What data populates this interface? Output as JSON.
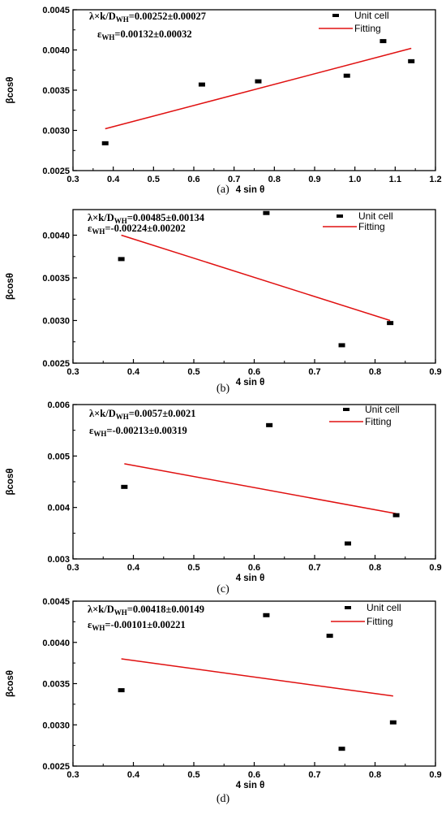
{
  "chart_data": [
    {
      "type": "scatter",
      "caption": "(a)",
      "xlabel": "4 sin θ",
      "ylabel": "βcosθ",
      "xlim": [
        0.3,
        1.2
      ],
      "ylim": [
        0.0025,
        0.0045
      ],
      "xticks": [
        "0.3",
        "0.4",
        "0.5",
        "0.6",
        "0.7",
        "0.8",
        "0.9",
        "1.0",
        "1.1",
        "1.2"
      ],
      "yticks": [
        "0.0025",
        "0.0030",
        "0.0035",
        "0.0040",
        "0.0045"
      ],
      "annotation": {
        "line1_prefix": "λ×k/D",
        "line1_sub": "WH",
        "line1_value": "=0.00252±0.00027",
        "line2_prefix": "ε",
        "line2_sub": "WH",
        "line2_value": "=0.00132±0.00032"
      },
      "legend": {
        "points_label": "Unit cell",
        "line_label": "Fitting",
        "position": "top-right"
      },
      "series": [
        {
          "name": "Unit cell",
          "type": "scatter",
          "x": [
            0.38,
            0.62,
            0.76,
            0.98,
            1.07,
            1.14
          ],
          "y": [
            0.00284,
            0.00357,
            0.00361,
            0.00368,
            0.00411,
            0.00386
          ]
        },
        {
          "name": "Fitting",
          "type": "line",
          "x": [
            0.38,
            1.14
          ],
          "y": [
            0.00302,
            0.00402
          ]
        }
      ]
    },
    {
      "type": "scatter",
      "caption": "(b)",
      "xlabel": "4 sin θ",
      "ylabel": "βcosθ",
      "xlim": [
        0.3,
        0.9
      ],
      "ylim": [
        0.0025,
        0.0043
      ],
      "xticks": [
        "0.3",
        "0.4",
        "0.5",
        "0.6",
        "0.7",
        "0.8",
        "0.9"
      ],
      "yticks": [
        "0.0025",
        "0.0030",
        "0.0035",
        "0.0040"
      ],
      "annotation": {
        "line1_prefix": "λ×k/D",
        "line1_sub": "WH",
        "line1_value": "=0.00485±0.00134",
        "line2_prefix": "ε",
        "line2_sub": "WH",
        "line2_value": "=-0.00224±0.00202"
      },
      "legend": {
        "points_label": "Unit cell",
        "line_label": "Fitting",
        "position": "top-right"
      },
      "series": [
        {
          "name": "Unit cell",
          "type": "scatter",
          "x": [
            0.38,
            0.62,
            0.745,
            0.825
          ],
          "y": [
            0.00372,
            0.00426,
            0.00271,
            0.00297
          ]
        },
        {
          "name": "Fitting",
          "type": "line",
          "x": [
            0.38,
            0.825
          ],
          "y": [
            0.004,
            0.003
          ]
        }
      ]
    },
    {
      "type": "scatter",
      "caption": "(c)",
      "xlabel": "4 sin θ",
      "ylabel": "βcosθ",
      "xlim": [
        0.3,
        0.9
      ],
      "ylim": [
        0.003,
        0.006
      ],
      "xticks": [
        "0.3",
        "0.4",
        "0.5",
        "0.6",
        "0.7",
        "0.8",
        "0.9"
      ],
      "yticks": [
        "0.003",
        "0.004",
        "0.005",
        "0.006"
      ],
      "annotation": {
        "line1_prefix": "λ×k/D",
        "line1_sub": "WH",
        "line1_value": "=0.0057±0.0021",
        "line2_prefix": "ε",
        "line2_sub": "WH",
        "line2_value": "=-0.00213±0.00319"
      },
      "legend": {
        "points_label": "Unit cell",
        "line_label": "Fitting",
        "position": "top-right"
      },
      "series": [
        {
          "name": "Unit cell",
          "type": "scatter",
          "x": [
            0.385,
            0.625,
            0.755,
            0.835
          ],
          "y": [
            0.0044,
            0.0056,
            0.0033,
            0.00385
          ]
        },
        {
          "name": "Fitting",
          "type": "line",
          "x": [
            0.385,
            0.835
          ],
          "y": [
            0.00485,
            0.00388
          ]
        }
      ]
    },
    {
      "type": "scatter",
      "caption": "(d)",
      "xlabel": "4 sin θ",
      "ylabel": "βcosθ",
      "xlim": [
        0.3,
        0.9
      ],
      "ylim": [
        0.0025,
        0.0045
      ],
      "xticks": [
        "0.3",
        "0.4",
        "0.5",
        "0.6",
        "0.7",
        "0.8",
        "0.9"
      ],
      "yticks": [
        "0.0025",
        "0.0030",
        "0.0035",
        "0.0040",
        "0.0045"
      ],
      "annotation": {
        "line1_prefix": "λ×k/D",
        "line1_sub": "WH",
        "line1_value": "=0.00418±0.00149",
        "line2_prefix": "ε",
        "line2_sub": "WH",
        "line2_value": "=-0.00101±0.00221"
      },
      "legend": {
        "points_label": "Unit cell",
        "line_label": "Fitting",
        "position": "top-right"
      },
      "series": [
        {
          "name": "Unit cell",
          "type": "scatter",
          "x": [
            0.38,
            0.62,
            0.725,
            0.745,
            0.83
          ],
          "y": [
            0.00342,
            0.00433,
            0.00408,
            0.00271,
            0.00303
          ]
        },
        {
          "name": "Fitting",
          "type": "line",
          "x": [
            0.38,
            0.83
          ],
          "y": [
            0.0038,
            0.00335
          ]
        }
      ]
    }
  ],
  "colors": {
    "points": "#000000",
    "fit_line": "#e01010",
    "axes": "#000000"
  }
}
